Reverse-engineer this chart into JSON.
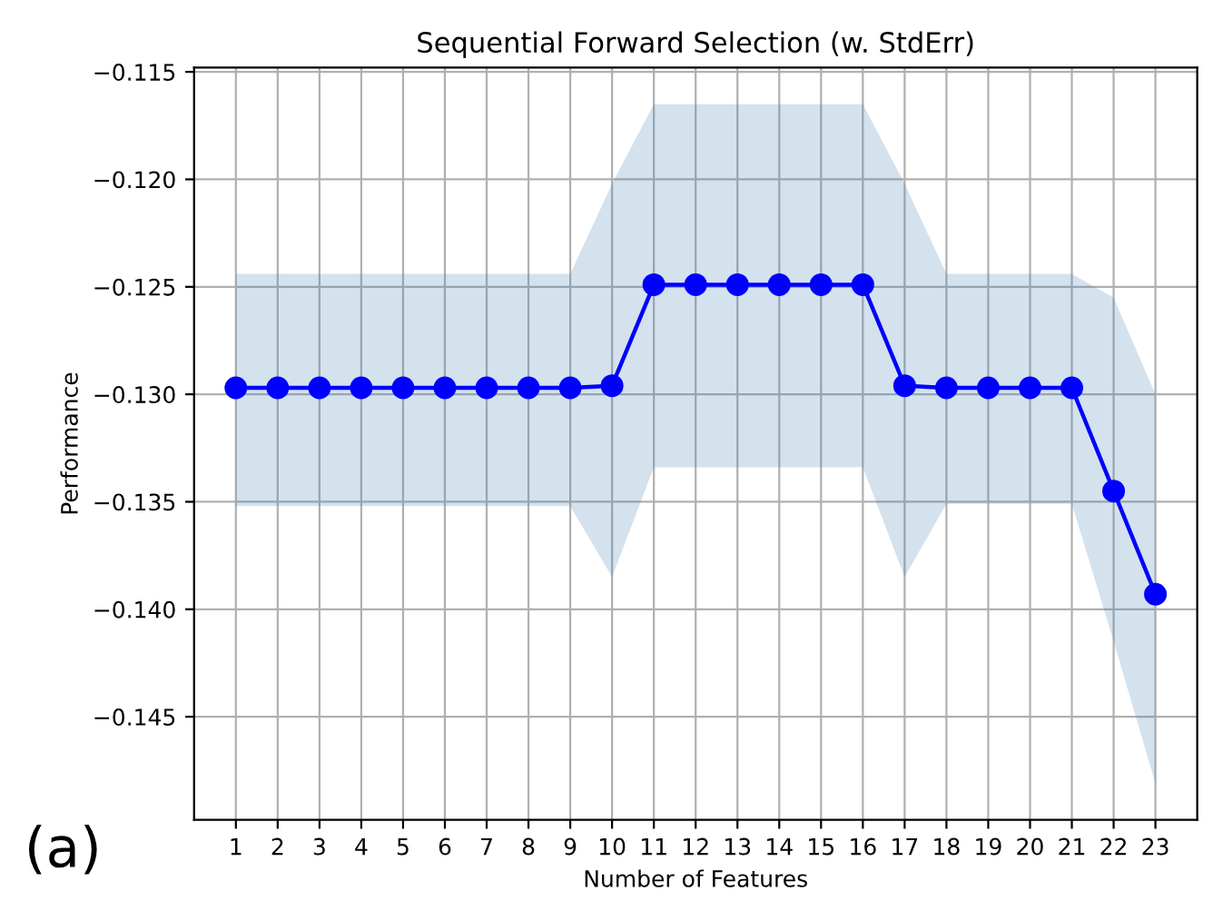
{
  "chart_data": {
    "type": "line",
    "title": "Sequential Forward Selection (w. StdErr)",
    "xlabel": "Number of Features",
    "ylabel": "Performance",
    "x": [
      1,
      2,
      3,
      4,
      5,
      6,
      7,
      8,
      9,
      10,
      11,
      12,
      13,
      14,
      15,
      16,
      17,
      18,
      19,
      20,
      21,
      22,
      23
    ],
    "series": [
      {
        "color": "#0000ff",
        "values": [
          -0.1297,
          -0.1297,
          -0.1297,
          -0.1297,
          -0.1297,
          -0.1297,
          -0.1297,
          -0.1297,
          -0.1297,
          -0.1296,
          -0.1249,
          -0.1249,
          -0.1249,
          -0.1249,
          -0.1249,
          -0.1249,
          -0.1296,
          -0.1297,
          -0.1297,
          -0.1297,
          -0.1297,
          -0.1345,
          -0.1393
        ],
        "upper": [
          -0.1244,
          -0.1244,
          -0.1244,
          -0.1244,
          -0.1244,
          -0.1244,
          -0.1244,
          -0.1244,
          -0.1244,
          -0.1202,
          -0.1165,
          -0.1165,
          -0.1165,
          -0.1165,
          -0.1165,
          -0.1165,
          -0.1202,
          -0.1244,
          -0.1244,
          -0.1244,
          -0.1244,
          -0.1255,
          -0.13
        ],
        "lower": [
          -0.1352,
          -0.1352,
          -0.1352,
          -0.1352,
          -0.1352,
          -0.1352,
          -0.1352,
          -0.1352,
          -0.1352,
          -0.1385,
          -0.1334,
          -0.1334,
          -0.1334,
          -0.1334,
          -0.1334,
          -0.1334,
          -0.1385,
          -0.1351,
          -0.1351,
          -0.1351,
          -0.1351,
          -0.1415,
          -0.1481
        ]
      }
    ],
    "xlim": [
      0,
      24
    ],
    "xticks": [
      1,
      2,
      3,
      4,
      5,
      6,
      7,
      8,
      9,
      10,
      11,
      12,
      13,
      14,
      15,
      16,
      17,
      18,
      19,
      20,
      21,
      22,
      23
    ],
    "ylim": [
      -0.1498,
      -0.1148
    ],
    "yticks": [
      {
        "value": -0.145,
        "label": "−0.145"
      },
      {
        "value": -0.14,
        "label": "−0.140"
      },
      {
        "value": -0.135,
        "label": "−0.135"
      },
      {
        "value": -0.13,
        "label": "−0.130"
      },
      {
        "value": -0.125,
        "label": "−0.125"
      },
      {
        "value": -0.12,
        "label": "−0.120"
      },
      {
        "value": -0.115,
        "label": "−0.115"
      }
    ],
    "grid": true,
    "marker": "circle",
    "line_style": "solid",
    "legend": false,
    "annotations": [
      "(a)"
    ]
  }
}
